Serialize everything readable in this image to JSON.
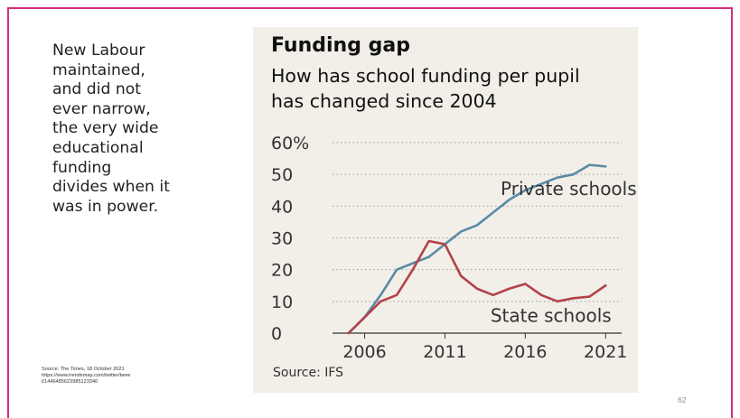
{
  "slide": {
    "body_text": "New Labour maintained, and did not ever narrow, the very wide educational funding divides when it was in power.",
    "source_lines": [
      "Source: The Times, 18 October 2021",
      "https://www.trendsmap.com/twitter/twee",
      "t/1446485623985123340"
    ],
    "page_number": "62",
    "border_color": "#d4307c"
  },
  "figure": {
    "title": "Funding gap",
    "subtitle_lines": [
      "How has school funding per pupil",
      "has changed since 2004"
    ],
    "source": "Source: IFS",
    "background": "#f1efe7"
  },
  "chart_data": {
    "type": "line",
    "title": "Funding gap",
    "subtitle": "How has school funding per pupil has changed since 2004",
    "xlabel": "",
    "ylabel": "",
    "xlim": [
      2004,
      2022
    ],
    "ylim": [
      0,
      60
    ],
    "x_ticks": [
      2006,
      2011,
      2016,
      2021
    ],
    "y_ticks": [
      0,
      10,
      20,
      30,
      40,
      50,
      60
    ],
    "y_tick_labels": [
      "0",
      "10",
      "20",
      "30",
      "40",
      "50",
      "60%"
    ],
    "grid": "horizontal dotted",
    "series": [
      {
        "name": "Private schools",
        "color": "#5b8aa6",
        "x": [
          2005,
          2006,
          2007,
          2008,
          2009,
          2010,
          2011,
          2012,
          2013,
          2014,
          2015,
          2016,
          2017,
          2018,
          2019,
          2020,
          2021
        ],
        "y": [
          0,
          5,
          12,
          20,
          22,
          24,
          28,
          32,
          34,
          38,
          42,
          45,
          47,
          49,
          50,
          53,
          52.5
        ]
      },
      {
        "name": "State schools",
        "color": "#b3424a",
        "x": [
          2005,
          2006,
          2007,
          2008,
          2009,
          2010,
          2011,
          2012,
          2013,
          2014,
          2015,
          2016,
          2017,
          2018,
          2019,
          2020,
          2021
        ],
        "y": [
          0,
          5,
          10,
          12,
          20,
          29,
          28,
          18,
          14,
          12,
          14,
          15.5,
          12,
          10,
          11,
          11.5,
          15
        ]
      }
    ]
  }
}
